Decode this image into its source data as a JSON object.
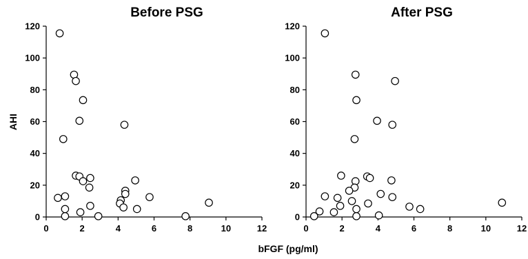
{
  "chart_data": [
    {
      "type": "scatter",
      "title": "Before PSG",
      "xlabel": "bFGF (pg/ml)",
      "ylabel": "AHI",
      "xlim": [
        0,
        12
      ],
      "ylim": [
        0,
        120
      ],
      "xticks": [
        "0",
        "2",
        "4",
        "6",
        "8",
        "10",
        "12"
      ],
      "yticks": [
        "0",
        "20",
        "40",
        "60",
        "80",
        "100",
        "120"
      ],
      "grid": false,
      "points": [
        {
          "x": 0.75,
          "y": 115.5
        },
        {
          "x": 1.55,
          "y": 89.5
        },
        {
          "x": 1.65,
          "y": 85.5
        },
        {
          "x": 2.05,
          "y": 73.5
        },
        {
          "x": 1.85,
          "y": 60.5
        },
        {
          "x": 0.95,
          "y": 49.0
        },
        {
          "x": 4.35,
          "y": 58.0
        },
        {
          "x": 1.65,
          "y": 26.0
        },
        {
          "x": 1.85,
          "y": 25.5
        },
        {
          "x": 2.45,
          "y": 24.5
        },
        {
          "x": 2.05,
          "y": 22.5
        },
        {
          "x": 2.4,
          "y": 18.5
        },
        {
          "x": 4.95,
          "y": 23.0
        },
        {
          "x": 4.4,
          "y": 16.5
        },
        {
          "x": 4.4,
          "y": 14.5
        },
        {
          "x": 0.65,
          "y": 12.0
        },
        {
          "x": 1.05,
          "y": 13.0
        },
        {
          "x": 5.75,
          "y": 12.5
        },
        {
          "x": 4.15,
          "y": 10.5
        },
        {
          "x": 4.1,
          "y": 8.5
        },
        {
          "x": 9.05,
          "y": 9.0
        },
        {
          "x": 2.45,
          "y": 7.0
        },
        {
          "x": 4.3,
          "y": 6.0
        },
        {
          "x": 1.05,
          "y": 5.0
        },
        {
          "x": 5.05,
          "y": 5.0
        },
        {
          "x": 1.9,
          "y": 3.0
        },
        {
          "x": 1.05,
          "y": 0.5
        },
        {
          "x": 2.9,
          "y": 0.5
        },
        {
          "x": 7.75,
          "y": 0.5
        }
      ]
    },
    {
      "type": "scatter",
      "title": "After PSG",
      "xlabel": "bFGF (pg/ml)",
      "ylabel": "",
      "xlim": [
        0,
        12
      ],
      "ylim": [
        0,
        120
      ],
      "xticks": [
        "0",
        "2",
        "4",
        "6",
        "8",
        "10",
        "12"
      ],
      "yticks": [
        "0",
        "20",
        "40",
        "60",
        "80",
        "100",
        "120"
      ],
      "grid": false,
      "points": [
        {
          "x": 1.05,
          "y": 115.5
        },
        {
          "x": 2.75,
          "y": 89.5
        },
        {
          "x": 4.95,
          "y": 85.5
        },
        {
          "x": 2.8,
          "y": 73.5
        },
        {
          "x": 3.95,
          "y": 60.5
        },
        {
          "x": 4.8,
          "y": 58.0
        },
        {
          "x": 2.7,
          "y": 49.0
        },
        {
          "x": 1.95,
          "y": 26.0
        },
        {
          "x": 3.4,
          "y": 25.5
        },
        {
          "x": 3.55,
          "y": 24.5
        },
        {
          "x": 4.75,
          "y": 23.0
        },
        {
          "x": 2.75,
          "y": 22.5
        },
        {
          "x": 2.7,
          "y": 18.5
        },
        {
          "x": 2.4,
          "y": 16.5
        },
        {
          "x": 4.15,
          "y": 14.5
        },
        {
          "x": 1.05,
          "y": 13.0
        },
        {
          "x": 4.8,
          "y": 12.5
        },
        {
          "x": 1.75,
          "y": 12.0
        },
        {
          "x": 2.55,
          "y": 10.0
        },
        {
          "x": 10.9,
          "y": 9.0
        },
        {
          "x": 3.45,
          "y": 8.5
        },
        {
          "x": 1.9,
          "y": 7.0
        },
        {
          "x": 5.75,
          "y": 6.5
        },
        {
          "x": 2.8,
          "y": 5.0
        },
        {
          "x": 6.35,
          "y": 5.0
        },
        {
          "x": 0.75,
          "y": 3.5
        },
        {
          "x": 1.55,
          "y": 3.0
        },
        {
          "x": 0.45,
          "y": 0.5
        },
        {
          "x": 2.8,
          "y": 0.5
        },
        {
          "x": 4.05,
          "y": 1.0
        }
      ]
    }
  ]
}
